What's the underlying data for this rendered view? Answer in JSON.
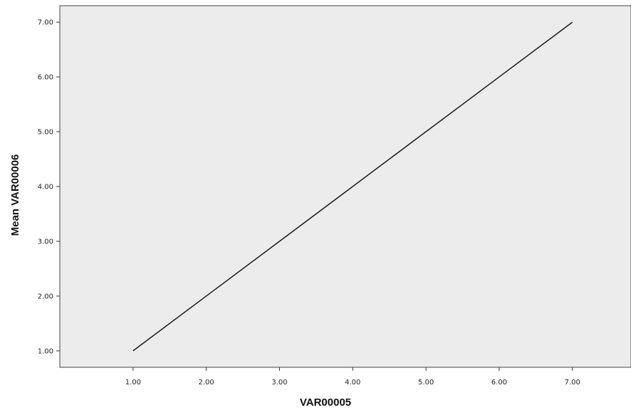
{
  "chart_data": {
    "type": "line",
    "xlabel": "VAR00005",
    "ylabel": "Mean VAR00006",
    "xlim": [
      0,
      7.8
    ],
    "ylim": [
      0.7,
      7.3
    ],
    "x_ticks": [
      1,
      2,
      3,
      4,
      5,
      6,
      7
    ],
    "x_tick_labels": [
      "1.00",
      "2.00",
      "3.00",
      "4.00",
      "5.00",
      "6.00",
      "7.00"
    ],
    "y_ticks": [
      1,
      2,
      3,
      4,
      5,
      6,
      7
    ],
    "y_tick_labels": [
      "1.00",
      "2.00",
      "3.00",
      "4.00",
      "5.00",
      "6.00",
      "7.00"
    ],
    "grid": false,
    "series": [
      {
        "x": [
          1,
          2,
          3,
          4,
          5,
          6,
          7
        ],
        "y": [
          1,
          2,
          3,
          4,
          5,
          6,
          7
        ]
      }
    ],
    "colors": {
      "plot_background": "#ececec",
      "line": "#1a1a1a",
      "frame": "#444444"
    }
  }
}
